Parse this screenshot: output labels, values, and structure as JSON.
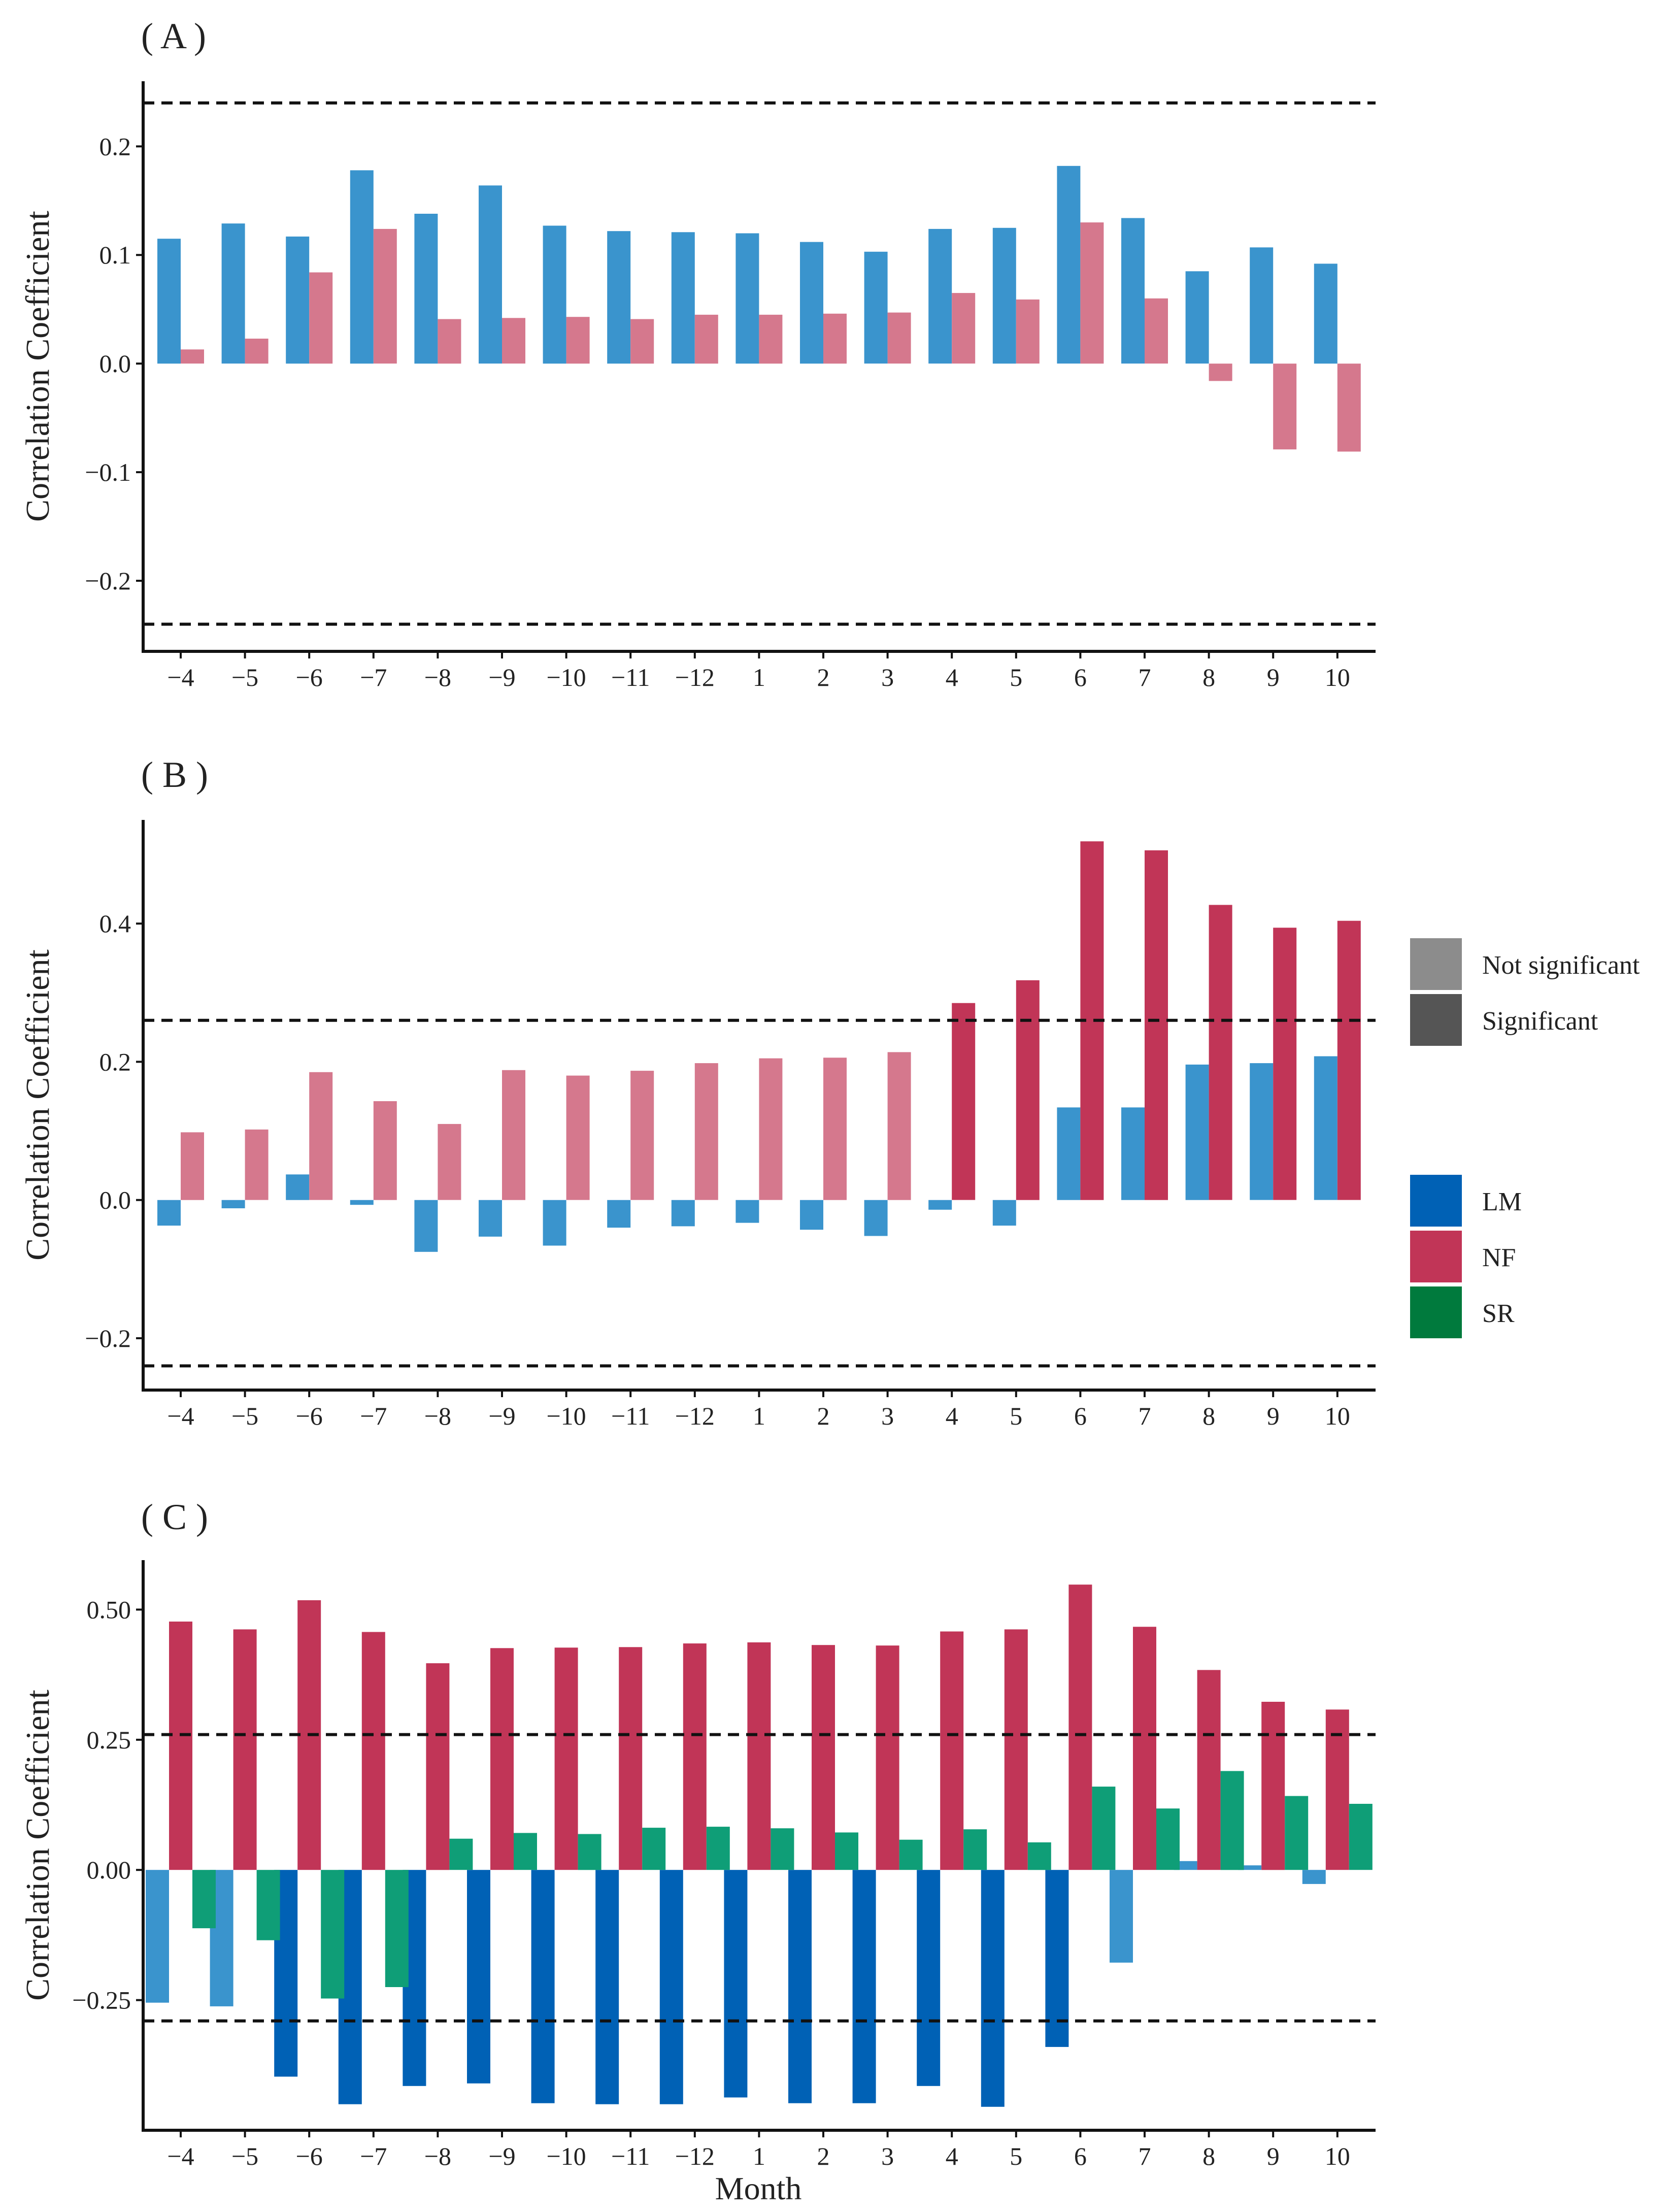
{
  "figure": {
    "x_axis_label": "Month",
    "y_axis_label": "Correlation Coefficient"
  },
  "legend": {
    "significance": [
      {
        "label": "Not significant",
        "color": "#8C8C8C"
      },
      {
        "label": "Significant",
        "color": "#555555"
      }
    ],
    "series": [
      {
        "label": "LM",
        "color": "#0061B5"
      },
      {
        "label": "NF",
        "color": "#C13557"
      },
      {
        "label": "SR",
        "color": "#007A3D"
      }
    ]
  },
  "chart_data": [
    {
      "type": "bar",
      "title": "( A )",
      "xlabel": "",
      "ylabel": "Correlation Coefficient",
      "ylim": [
        -0.265,
        0.26
      ],
      "yticks": [
        -0.2,
        -0.1,
        0.0,
        0.1,
        0.2
      ],
      "ytick_labels": [
        "−0.2",
        "−0.1",
        "0.0",
        "0.1",
        "0.2"
      ],
      "significance_threshold": [
        0.24,
        -0.24
      ],
      "categories": [
        "−4",
        "−5",
        "−6",
        "−7",
        "−8",
        "−9",
        "−10",
        "−11",
        "−12",
        "1",
        "2",
        "3",
        "4",
        "5",
        "6",
        "7",
        "8",
        "9",
        "10"
      ],
      "series": [
        {
          "name": "LM",
          "values": [
            0.115,
            0.129,
            0.117,
            0.178,
            0.138,
            0.164,
            0.127,
            0.122,
            0.121,
            0.12,
            0.112,
            0.103,
            0.124,
            0.125,
            0.182,
            0.134,
            0.085,
            0.107,
            0.092
          ],
          "significant": [
            false,
            false,
            false,
            false,
            false,
            false,
            false,
            false,
            false,
            false,
            false,
            false,
            false,
            false,
            false,
            false,
            false,
            false,
            false
          ]
        },
        {
          "name": "NF",
          "values": [
            0.013,
            0.023,
            0.084,
            0.124,
            0.041,
            0.042,
            0.043,
            0.041,
            0.045,
            0.045,
            0.046,
            0.047,
            0.065,
            0.059,
            0.13,
            0.06,
            -0.016,
            -0.079,
            -0.081
          ],
          "significant": [
            false,
            false,
            false,
            false,
            false,
            false,
            false,
            false,
            false,
            false,
            false,
            false,
            false,
            false,
            false,
            false,
            false,
            false,
            false
          ]
        }
      ]
    },
    {
      "type": "bar",
      "title": "( B )",
      "xlabel": "",
      "ylabel": "Correlation Coefficient",
      "ylim": [
        -0.275,
        0.55
      ],
      "yticks": [
        -0.2,
        0.0,
        0.2,
        0.4
      ],
      "ytick_labels": [
        "−0.2",
        "0.0",
        "0.2",
        "0.4"
      ],
      "significance_threshold": [
        0.26,
        -0.24
      ],
      "categories": [
        "−4",
        "−5",
        "−6",
        "−7",
        "−8",
        "−9",
        "−10",
        "−11",
        "−12",
        "1",
        "2",
        "3",
        "4",
        "5",
        "6",
        "7",
        "8",
        "9",
        "10"
      ],
      "series": [
        {
          "name": "LM",
          "values": [
            -0.037,
            -0.012,
            0.037,
            -0.007,
            -0.075,
            -0.053,
            -0.066,
            -0.04,
            -0.038,
            -0.033,
            -0.043,
            -0.052,
            -0.014,
            -0.037,
            0.134,
            0.134,
            0.196,
            0.198,
            0.208
          ],
          "significant": [
            false,
            false,
            false,
            false,
            false,
            false,
            false,
            false,
            false,
            false,
            false,
            false,
            false,
            false,
            false,
            false,
            false,
            false,
            false
          ]
        },
        {
          "name": "NF",
          "values": [
            0.098,
            0.102,
            0.185,
            0.143,
            0.11,
            0.188,
            0.18,
            0.187,
            0.198,
            0.205,
            0.206,
            0.214,
            0.285,
            0.318,
            0.519,
            0.506,
            0.427,
            0.394,
            0.404
          ],
          "significant": [
            false,
            false,
            false,
            false,
            false,
            false,
            false,
            false,
            false,
            false,
            false,
            false,
            true,
            true,
            true,
            true,
            true,
            true,
            true
          ]
        }
      ]
    },
    {
      "type": "bar",
      "title": "( C )",
      "xlabel": "Month",
      "ylabel": "Correlation Coefficient",
      "ylim": [
        -0.5,
        0.595
      ],
      "yticks": [
        -0.25,
        0.0,
        0.25,
        0.5
      ],
      "ytick_labels": [
        "−0.25",
        "0.00",
        "0.25",
        "0.50"
      ],
      "significance_threshold": [
        0.26,
        -0.29
      ],
      "categories": [
        "−4",
        "−5",
        "−6",
        "−7",
        "−8",
        "−9",
        "−10",
        "−11",
        "−12",
        "1",
        "2",
        "3",
        "4",
        "5",
        "6",
        "7",
        "8",
        "9",
        "10"
      ],
      "series": [
        {
          "name": "LM",
          "values": [
            -0.255,
            -0.262,
            -0.397,
            -0.45,
            -0.415,
            -0.41,
            -0.448,
            -0.45,
            -0.45,
            -0.437,
            -0.448,
            -0.448,
            -0.415,
            -0.455,
            -0.34,
            -0.178,
            0.017,
            0.008,
            -0.027
          ],
          "significant": [
            false,
            false,
            true,
            true,
            true,
            true,
            true,
            true,
            true,
            true,
            true,
            true,
            true,
            true,
            true,
            false,
            false,
            false,
            false
          ]
        },
        {
          "name": "NF",
          "values": [
            0.477,
            0.462,
            0.518,
            0.457,
            0.397,
            0.426,
            0.427,
            0.428,
            0.435,
            0.437,
            0.432,
            0.431,
            0.458,
            0.462,
            0.548,
            0.467,
            0.384,
            0.323,
            0.308
          ],
          "significant": [
            true,
            true,
            true,
            true,
            true,
            true,
            true,
            true,
            true,
            true,
            true,
            true,
            true,
            true,
            true,
            true,
            true,
            true,
            true
          ]
        },
        {
          "name": "SR",
          "values": [
            -0.112,
            -0.135,
            -0.247,
            -0.225,
            0.06,
            0.071,
            0.069,
            0.081,
            0.083,
            0.08,
            0.072,
            0.058,
            0.078,
            0.053,
            0.16,
            0.118,
            0.19,
            0.142,
            0.127
          ],
          "significant": [
            false,
            false,
            false,
            false,
            false,
            false,
            false,
            false,
            false,
            false,
            false,
            false,
            false,
            false,
            false,
            false,
            false,
            false,
            false
          ]
        }
      ]
    }
  ]
}
